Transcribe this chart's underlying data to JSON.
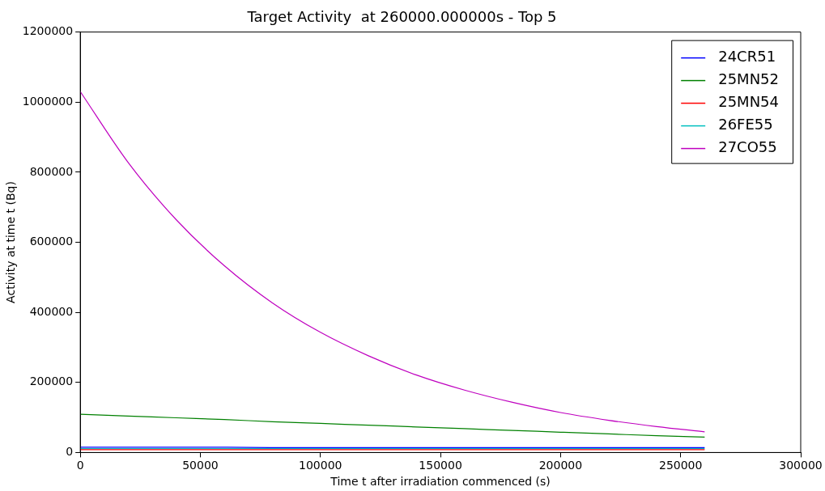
{
  "chart_data": {
    "type": "line",
    "title": "Target Activity  at 260000.000000s - Top 5",
    "xlabel": "Time t after irradiation commenced (s)",
    "ylabel": "Activity at time t (Bq)",
    "x": [
      0,
      20000,
      40000,
      60000,
      80000,
      100000,
      120000,
      140000,
      160000,
      180000,
      200000,
      220000,
      240000,
      260000
    ],
    "series": [
      {
        "name": "24CR51",
        "color": "#0000ff",
        "values": [
          15000,
          15000,
          15000,
          15000,
          14000,
          14000,
          14000,
          14000,
          14000,
          14000,
          14000,
          14000,
          14000,
          14000
        ]
      },
      {
        "name": "25MN52",
        "color": "#008000",
        "values": [
          109000,
          104000,
          99000,
          94000,
          88000,
          83000,
          78000,
          73000,
          68000,
          63000,
          58000,
          53000,
          48000,
          44000
        ]
      },
      {
        "name": "25MN54",
        "color": "#ff0000",
        "values": [
          8000,
          8000,
          8000,
          8000,
          8000,
          8000,
          8000,
          8000,
          8000,
          8000,
          8000,
          8000,
          8000,
          8000
        ]
      },
      {
        "name": "26FE55",
        "color": "#00bfbf",
        "values": [
          11000,
          11000,
          11000,
          11000,
          11000,
          11000,
          11000,
          11000,
          11000,
          11000,
          11000,
          11000,
          11000,
          11000
        ]
      },
      {
        "name": "27CO55",
        "color": "#bf00bf",
        "values": [
          1030000,
          827000,
          664000,
          533000,
          427000,
          343000,
          276000,
          221000,
          178000,
          143000,
          114000,
          92000,
          74000,
          59000
        ]
      }
    ],
    "xlim": [
      0,
      300000
    ],
    "xticks": [
      0,
      50000,
      100000,
      150000,
      200000,
      250000,
      300000
    ],
    "ylim": [
      0,
      1200000
    ],
    "yticks": [
      0,
      200000,
      400000,
      600000,
      800000,
      1000000,
      1200000
    ],
    "grid": false,
    "legend": "top right",
    "marker": "none",
    "line_style": "solid"
  }
}
